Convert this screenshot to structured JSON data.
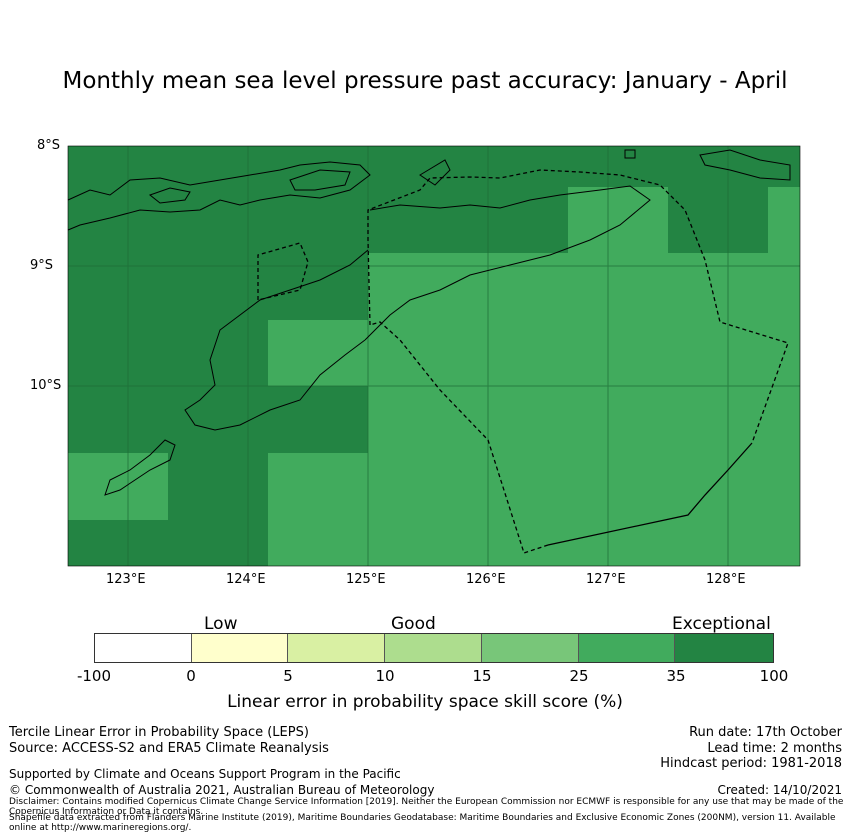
{
  "title": "Monthly mean sea level pressure past accuracy: January - April",
  "map": {
    "lat_labels": [
      "8°S",
      "9°S",
      "10°S"
    ],
    "lon_labels": [
      "123°E",
      "124°E",
      "125°E",
      "126°E",
      "127°E",
      "128°E"
    ],
    "colors": {
      "very_good": "#41ab5d",
      "exceptional": "#238443"
    }
  },
  "colorbar": {
    "category_labels": {
      "low": "Low",
      "good": "Good",
      "exceptional": "Exceptional"
    },
    "ticks": [
      "-100",
      "0",
      "5",
      "10",
      "15",
      "25",
      "35",
      "100"
    ],
    "segment_colors": [
      "#ffffff",
      "#ffffcc",
      "#d9f0a3",
      "#addd8e",
      "#78c679",
      "#41ab5d",
      "#238443"
    ],
    "title": "Linear error in probability space skill score (%)"
  },
  "info": {
    "method": "Tercile Linear Error in Probability Space (LEPS)",
    "source": "Source: ACCESS-S2 and ERA5 Climate Reanalysis",
    "run_date": "Run date: 17th October",
    "lead_time": "Lead time: 2 months",
    "hindcast": "Hindcast period: 1981-2018",
    "support": "Supported by Climate and Oceans Support Program in the Pacific",
    "copyright": "© Commonwealth of Australia 2021, Australian Bureau of Meteorology",
    "created": "Created: 14/10/2021",
    "disclaimer": "Disclaimer: Contains modified Copernicus Climate Change Service Information [2019]. Neither the European Commission nor ECMWF is responsible for any use that may be made of the Copernicus Information or Data it contains.",
    "shapefile": "Shapefile data extracted from Flanders Marine Institute (2019), Maritime Boundaries Geodatabase: Maritime Boundaries and Exclusive Economic Zones (200NM), version 11. Available online at http://www.marineregions.org/."
  }
}
